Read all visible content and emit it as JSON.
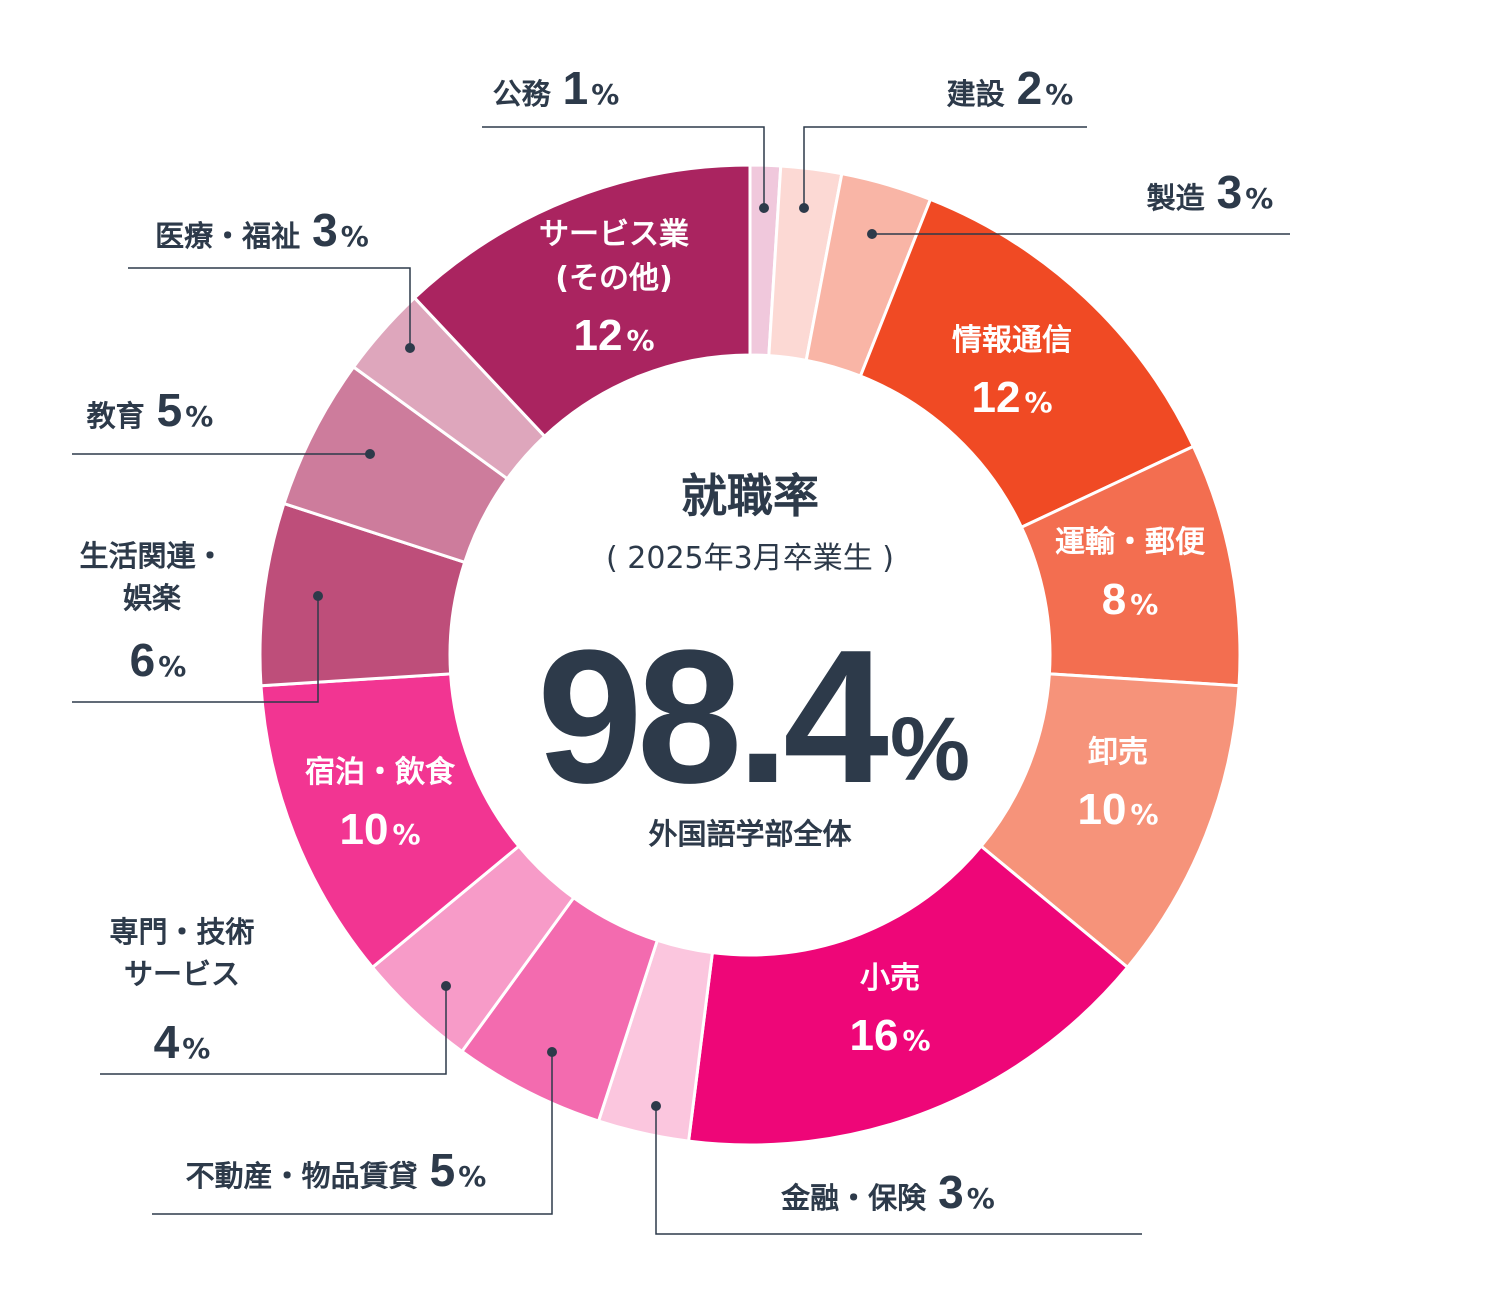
{
  "chart_data": {
    "type": "pie",
    "style": "donut",
    "center": {
      "title": "就職率",
      "subtitle": "( 2025年3月卒業生 )",
      "value": "98.4",
      "unit": "%",
      "caption": "外国語学部全体"
    },
    "unit": "%",
    "slices": [
      {
        "id": "koumu",
        "label": "公務",
        "value": 1,
        "color": "#f0c8dc",
        "label_position": "outside"
      },
      {
        "id": "kensetsu",
        "label": "建設",
        "value": 2,
        "color": "#fcd9d4",
        "label_position": "outside"
      },
      {
        "id": "seizou",
        "label": "製造",
        "value": 3,
        "color": "#f9b5a6",
        "label_position": "outside"
      },
      {
        "id": "jouhou",
        "label": "情報通信",
        "value": 12,
        "color": "#f04a24",
        "label_position": "inside"
      },
      {
        "id": "unyu",
        "label": "運輸・郵便",
        "value": 8,
        "color": "#f36e50",
        "label_position": "inside"
      },
      {
        "id": "oroshi",
        "label": "卸売",
        "value": 10,
        "color": "#f6937a",
        "label_position": "inside"
      },
      {
        "id": "kouri",
        "label": "小売",
        "value": 16,
        "color": "#ee0678",
        "label_position": "inside"
      },
      {
        "id": "kinyu",
        "label": "金融・保険",
        "value": 3,
        "color": "#fbc6de",
        "label_position": "outside"
      },
      {
        "id": "fudousan",
        "label": "不動産・物品賃貸",
        "value": 5,
        "color": "#f36baf",
        "label_position": "outside"
      },
      {
        "id": "senmon",
        "label": "専門・技術サービス",
        "value": 4,
        "color": "#f79bc8",
        "label_position": "outside"
      },
      {
        "id": "shukuhaku",
        "label": "宿泊・飲食",
        "value": 10,
        "color": "#f23592",
        "label_position": "inside"
      },
      {
        "id": "seikatsu",
        "label": "生活関連・娯楽",
        "value": 6,
        "color": "#be4e7a",
        "label_position": "outside"
      },
      {
        "id": "kyouiku",
        "label": "教育",
        "value": 5,
        "color": "#cd7c9c",
        "label_position": "outside"
      },
      {
        "id": "iryou",
        "label": "医療・福祉",
        "value": 3,
        "color": "#dea6bc",
        "label_position": "outside"
      },
      {
        "id": "service",
        "label": "サービス業(その他)",
        "value": 12,
        "color": "#aa2460",
        "label_position": "inside"
      }
    ]
  }
}
